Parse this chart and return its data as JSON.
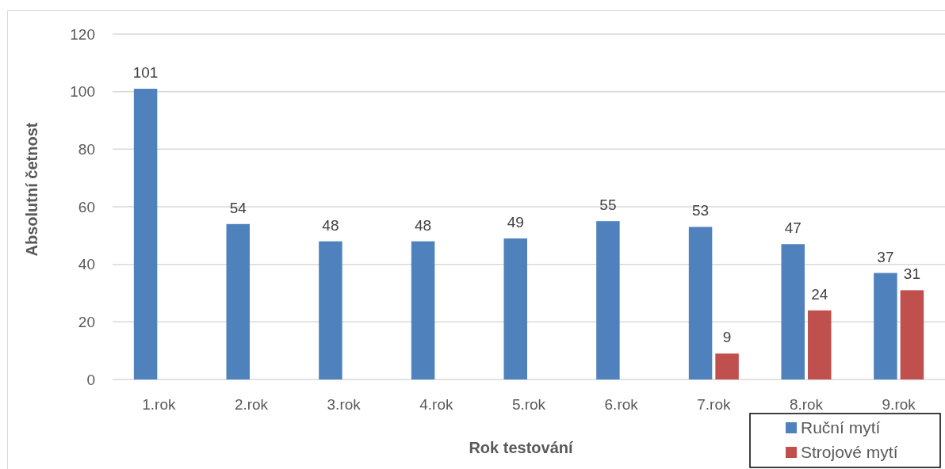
{
  "chart_data": {
    "type": "bar",
    "xlabel": "Rok testování",
    "ylabel": "Absolutní četnost",
    "categories": [
      "1.rok",
      "2.rok",
      "3.rok",
      "4.rok",
      "5.rok",
      "6.rok",
      "7.rok",
      "8.rok",
      "9.rok"
    ],
    "series": [
      {
        "name": "Ruční mytí",
        "color": "#4f81bd",
        "values": [
          101,
          54,
          48,
          48,
          49,
          55,
          53,
          47,
          37
        ]
      },
      {
        "name": "Strojové mytí",
        "color": "#c0504d",
        "values": [
          null,
          null,
          null,
          null,
          null,
          null,
          9,
          24,
          31
        ]
      }
    ],
    "ylim": [
      0,
      120
    ],
    "yticks": [
      0,
      20,
      40,
      60,
      80,
      100,
      120
    ],
    "grid": "y",
    "legend": "bottom right",
    "data_labels": true
  }
}
